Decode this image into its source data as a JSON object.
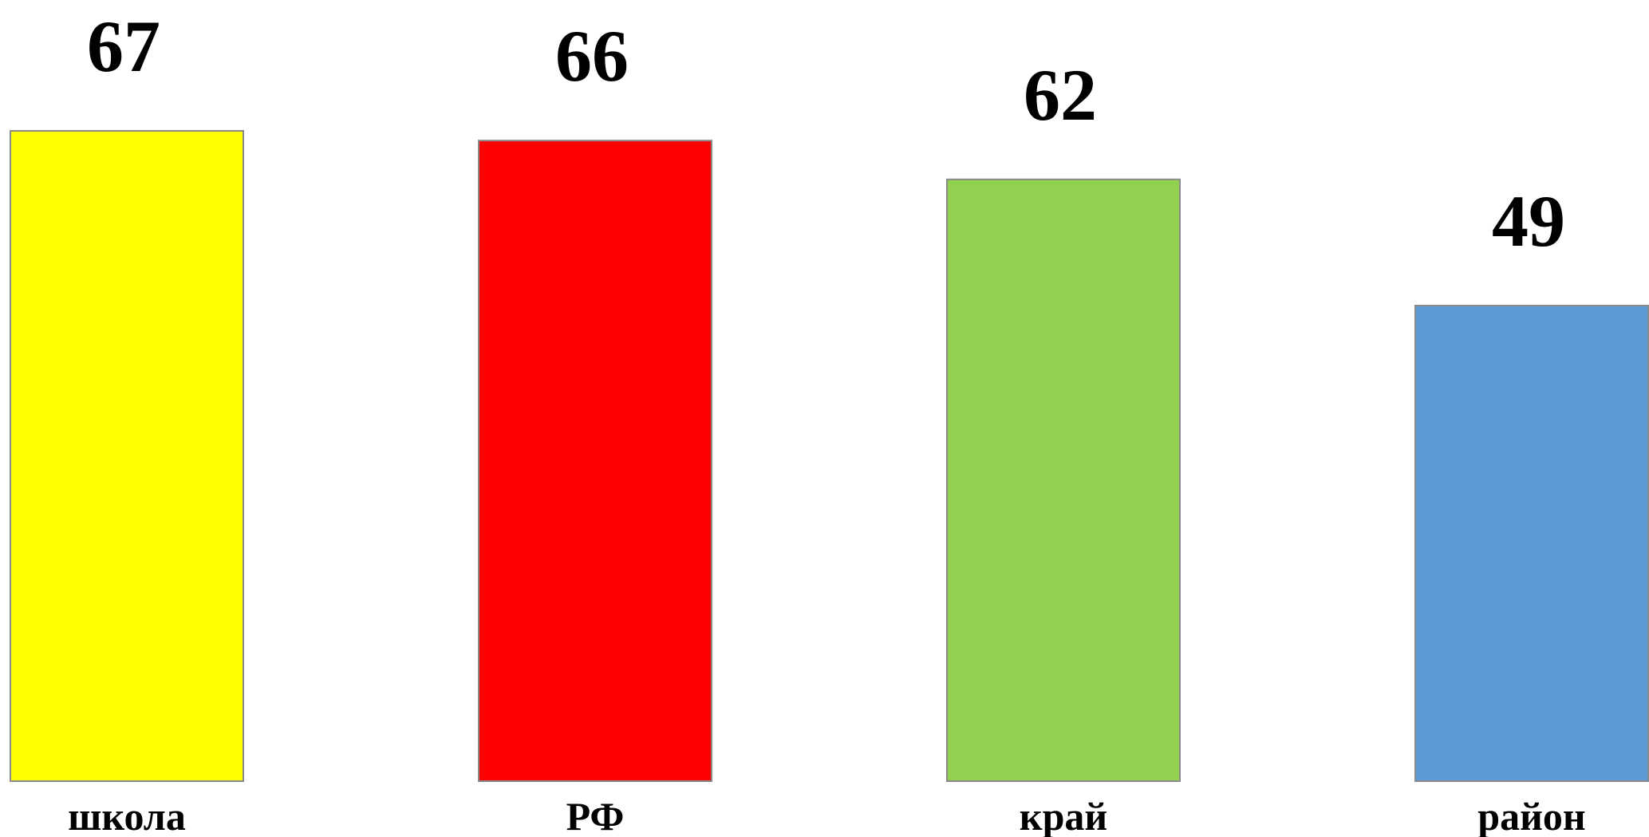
{
  "chart_data": {
    "type": "bar",
    "title": "",
    "xlabel": "",
    "ylabel": "",
    "categories": [
      "школа",
      "РФ",
      "край",
      "район"
    ],
    "values": [
      67,
      66,
      62,
      49
    ],
    "ylim": [
      0,
      67
    ],
    "grid": false,
    "data_labels": true,
    "colors": [
      "#FFFF00",
      "#FF0000",
      "#92D050",
      "#5B9BD5"
    ]
  }
}
